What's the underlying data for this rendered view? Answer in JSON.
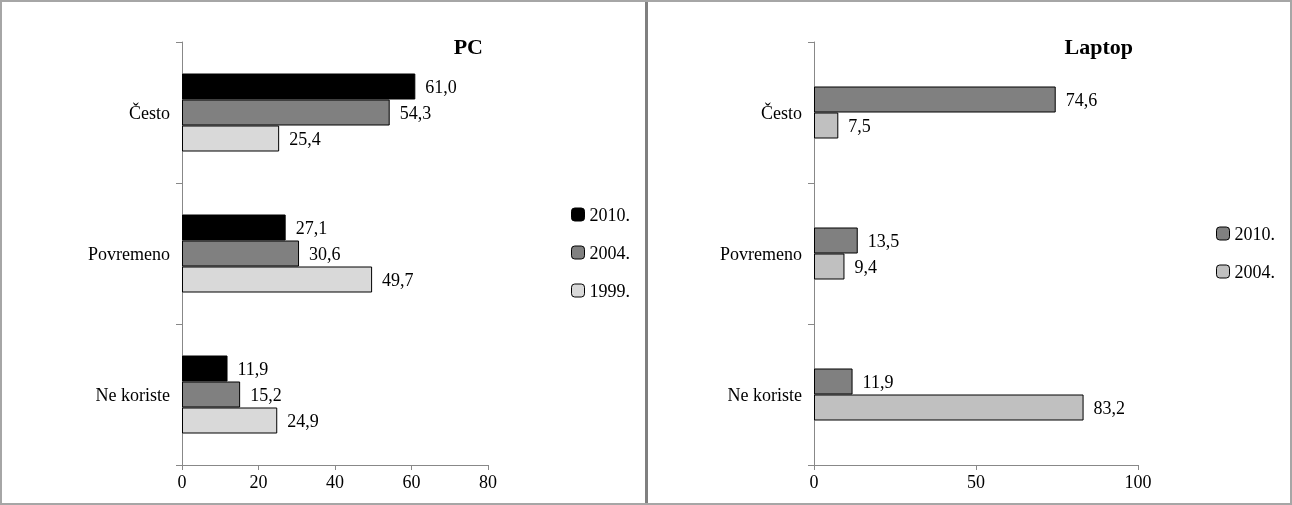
{
  "chart_data": [
    {
      "type": "bar",
      "orientation": "horizontal",
      "title": "PC",
      "categories": [
        "Često",
        "Povremeno",
        "Ne koriste"
      ],
      "series": [
        {
          "name": "2010.",
          "color": "#000000",
          "values": [
            61.0,
            27.1,
            11.9
          ],
          "value_labels": [
            "61,0",
            "27,1",
            "11,9"
          ]
        },
        {
          "name": "2004.",
          "color": "#808080",
          "values": [
            54.3,
            30.6,
            15.2
          ],
          "value_labels": [
            "54,3",
            "30,6",
            "15,2"
          ]
        },
        {
          "name": "1999.",
          "color": "#d9d9d9",
          "values": [
            25.4,
            49.7,
            24.9
          ],
          "value_labels": [
            "25,4",
            "49,7",
            "24,9"
          ]
        }
      ],
      "xlim": [
        0,
        80
      ],
      "xticks": [
        0,
        20,
        40,
        60,
        80
      ],
      "legend": "right",
      "grid": false
    },
    {
      "type": "bar",
      "orientation": "horizontal",
      "title": "Laptop",
      "categories": [
        "Često",
        "Povremeno",
        "Ne koriste"
      ],
      "series": [
        {
          "name": "2010.",
          "color": "#808080",
          "values": [
            74.6,
            13.5,
            11.9
          ],
          "value_labels": [
            "74,6",
            "13,5",
            "11,9"
          ]
        },
        {
          "name": "2004.",
          "color": "#c0c0c0",
          "values": [
            7.5,
            9.4,
            83.2
          ],
          "value_labels": [
            "7,5",
            "9,4",
            "83,2"
          ]
        }
      ],
      "xlim": [
        0,
        100
      ],
      "xticks": [
        0,
        50,
        100
      ],
      "legend": "right",
      "grid": false
    }
  ]
}
